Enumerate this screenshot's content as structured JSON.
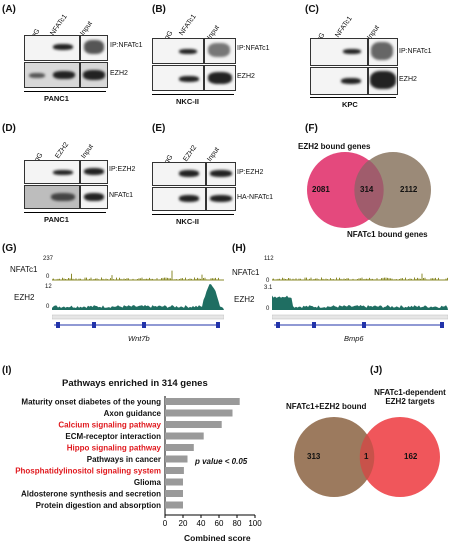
{
  "panels": {
    "A": {
      "label": "(A)",
      "lanes": [
        "IgG",
        "NFATc1",
        "Input"
      ],
      "rows": [
        "IP:NFATc1",
        "EZH2"
      ],
      "cell": "PANC1"
    },
    "B": {
      "label": "(B)",
      "lanes": [
        "IgG",
        "NFATc1",
        "Input"
      ],
      "rows": [
        "IP:NFATc1",
        "EZH2"
      ],
      "cell": "NKC-II"
    },
    "C": {
      "label": "(C)",
      "lanes": [
        "IgG",
        "NFATc1",
        "Input"
      ],
      "rows": [
        "IP:NFATc1",
        "EZH2"
      ],
      "cell": "KPC"
    },
    "D": {
      "label": "(D)",
      "lanes": [
        "IgG",
        "EZH2",
        "Input"
      ],
      "rows": [
        "IP:EZH2",
        "NFATc1"
      ],
      "cell": "PANC1"
    },
    "E": {
      "label": "(E)",
      "lanes": [
        "IgG",
        "EZH2",
        "Input"
      ],
      "rows": [
        "IP:EZH2",
        "HA-NFATc1"
      ],
      "cell": "NKC-II"
    },
    "F": {
      "label": "(F)",
      "top": "EZH2 bound genes",
      "bottom": "NFATc1 bound genes",
      "left": "2081",
      "overlap": "314",
      "right": "2112"
    },
    "G": {
      "label": "(G)",
      "tracks": [
        {
          "name": "NFATc1",
          "scale_top": "237",
          "scale_bot": "0"
        },
        {
          "name": "EZH2",
          "scale_top": "12",
          "scale_bot": "0"
        }
      ],
      "gene": "Wnt7b"
    },
    "H": {
      "label": "(H)",
      "tracks": [
        {
          "name": "NFATc1",
          "scale_top": "112",
          "scale_bot": "0"
        },
        {
          "name": "EZH2",
          "scale_top": "3.1",
          "scale_bot": "0"
        }
      ],
      "gene": "Bmp6"
    },
    "I": {
      "label": "(I)",
      "pvalue": "p value < 0.05"
    },
    "J": {
      "label": "(J)",
      "left_title": "NFATc1+EZH2 bound",
      "right_title": "NFATc1-dependent\nEZH2 targets",
      "left": "313",
      "overlap": "1",
      "right": "162"
    }
  },
  "chart_data": {
    "type": "bar",
    "title": "Pathways enriched in 314 genes",
    "xlabel": "Combined score",
    "ylabel": "",
    "xlim": [
      0,
      100
    ],
    "xticks": [
      "0",
      "20",
      "40",
      "60",
      "80",
      "100"
    ],
    "categories": [
      "Maturity onset diabetes of the young",
      "Axon guidance",
      "Calcium signaling pathway",
      "ECM-receptor interaction",
      "Hippo signaling pathway",
      "Pathways in cancer",
      "Phosphatidylinositol signaling system",
      "Glioma",
      "Aldosterone synthesis and secretion",
      "Protein digestion and absorption"
    ],
    "values": [
      83,
      75,
      63,
      43,
      32,
      25,
      21,
      20,
      20,
      20
    ],
    "highlight": [
      false,
      false,
      true,
      false,
      true,
      false,
      true,
      false,
      false,
      false
    ],
    "highlight_color": "#e0191e",
    "bar_color": "#9a9a9a"
  },
  "colors": {
    "pink": "#e4497d",
    "taupe": "#9b8a78",
    "brown": "#9c7a5e",
    "red": "#f0565b",
    "olive": "#8a8a2a",
    "teal": "#1f6e62"
  }
}
